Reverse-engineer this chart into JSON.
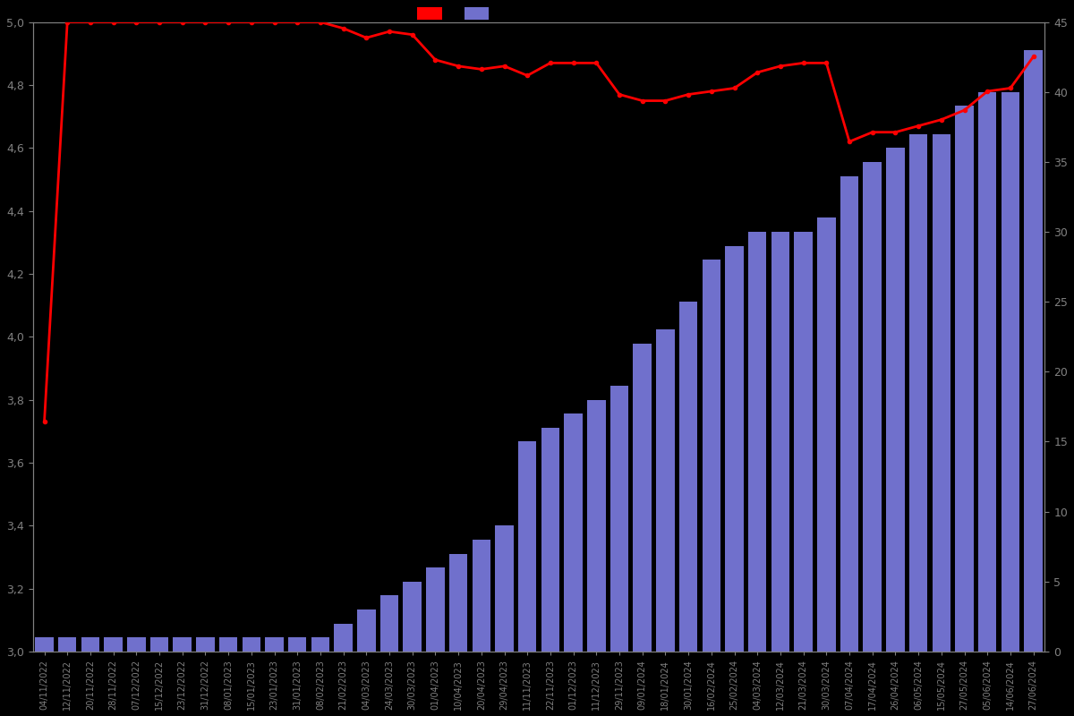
{
  "background_color": "#000000",
  "text_color": "#808080",
  "bar_color": "#7070cc",
  "line_color": "#ff0000",
  "ylim_left": [
    3.0,
    5.0
  ],
  "ylim_right": [
    0,
    45
  ],
  "yticks_left": [
    3.0,
    3.2,
    3.4,
    3.6,
    3.8,
    4.0,
    4.2,
    4.4,
    4.6,
    4.8,
    5.0
  ],
  "yticks_right": [
    0,
    5,
    10,
    15,
    20,
    25,
    30,
    35,
    40,
    45
  ],
  "dates": [
    "04/11/2022",
    "12/11/2022",
    "20/11/2022",
    "28/11/2022",
    "07/12/2022",
    "15/12/2022",
    "23/12/2022",
    "31/12/2022",
    "08/01/2023",
    "15/01/2023",
    "23/01/2023",
    "31/01/2023",
    "08/02/2023",
    "21/02/2023",
    "04/03/2023",
    "24/03/2023",
    "30/03/2023",
    "01/04/2023",
    "10/04/2023",
    "20/04/2023",
    "29/04/2023",
    "11/11/2023",
    "22/11/2023",
    "01/12/2023",
    "11/12/2023",
    "29/11/2023",
    "09/01/2024",
    "18/01/2024",
    "30/01/2024",
    "16/02/2024",
    "25/02/2024",
    "04/03/2024",
    "12/03/2024",
    "21/03/2024",
    "30/03/2024",
    "07/04/2024",
    "17/04/2024",
    "26/04/2024",
    "06/05/2024",
    "15/05/2024",
    "27/05/2024",
    "05/06/2024",
    "14/06/2024",
    "27/06/2024"
  ],
  "bar_heights": [
    1,
    1,
    1,
    1,
    1,
    1,
    1,
    1,
    1,
    1,
    1,
    1,
    1,
    2,
    3,
    4,
    5,
    6,
    7,
    8,
    9,
    15,
    16,
    17,
    18,
    19,
    22,
    23,
    25,
    28,
    29,
    30,
    30,
    30,
    31,
    34,
    35,
    36,
    37,
    37,
    39,
    40,
    40,
    43
  ],
  "line_values": [
    3.73,
    5.0,
    5.0,
    5.0,
    5.0,
    5.0,
    5.0,
    5.0,
    5.0,
    5.0,
    5.0,
    5.0,
    5.0,
    4.98,
    4.95,
    4.97,
    4.96,
    4.88,
    4.86,
    4.85,
    4.86,
    4.83,
    4.87,
    4.87,
    4.87,
    4.77,
    4.75,
    4.75,
    4.77,
    4.78,
    4.79,
    4.84,
    4.86,
    4.87,
    4.87,
    4.62,
    4.65,
    4.65,
    4.67,
    4.69,
    4.72,
    4.78,
    4.79,
    4.89
  ]
}
